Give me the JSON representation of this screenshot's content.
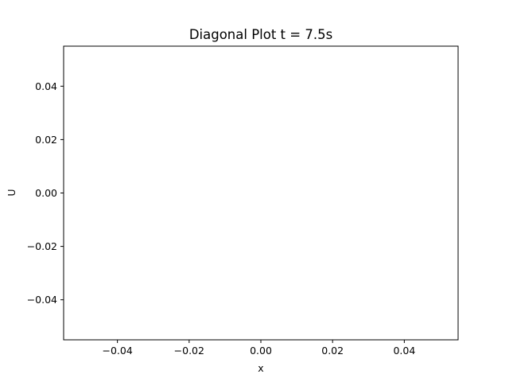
{
  "chart_data": {
    "type": "line",
    "title": "Diagonal Plot t = 7.5s",
    "xlabel": "x",
    "ylabel": "U",
    "xlim": [
      -0.055,
      0.055
    ],
    "ylim": [
      -0.055,
      0.055
    ],
    "xticks": [
      -0.04,
      -0.02,
      0.0,
      0.02,
      0.04
    ],
    "yticks": [
      -0.04,
      -0.02,
      0.0,
      0.02,
      0.04
    ],
    "xtick_labels": [
      "−0.04",
      "−0.02",
      "0.00",
      "0.02",
      "0.04"
    ],
    "ytick_labels": [
      "−0.04",
      "−0.02",
      "0.00",
      "0.02",
      "0.04"
    ],
    "grid": false,
    "legend": "none",
    "series": [],
    "colors": {
      "axes": "#000000",
      "background": "#ffffff"
    }
  }
}
